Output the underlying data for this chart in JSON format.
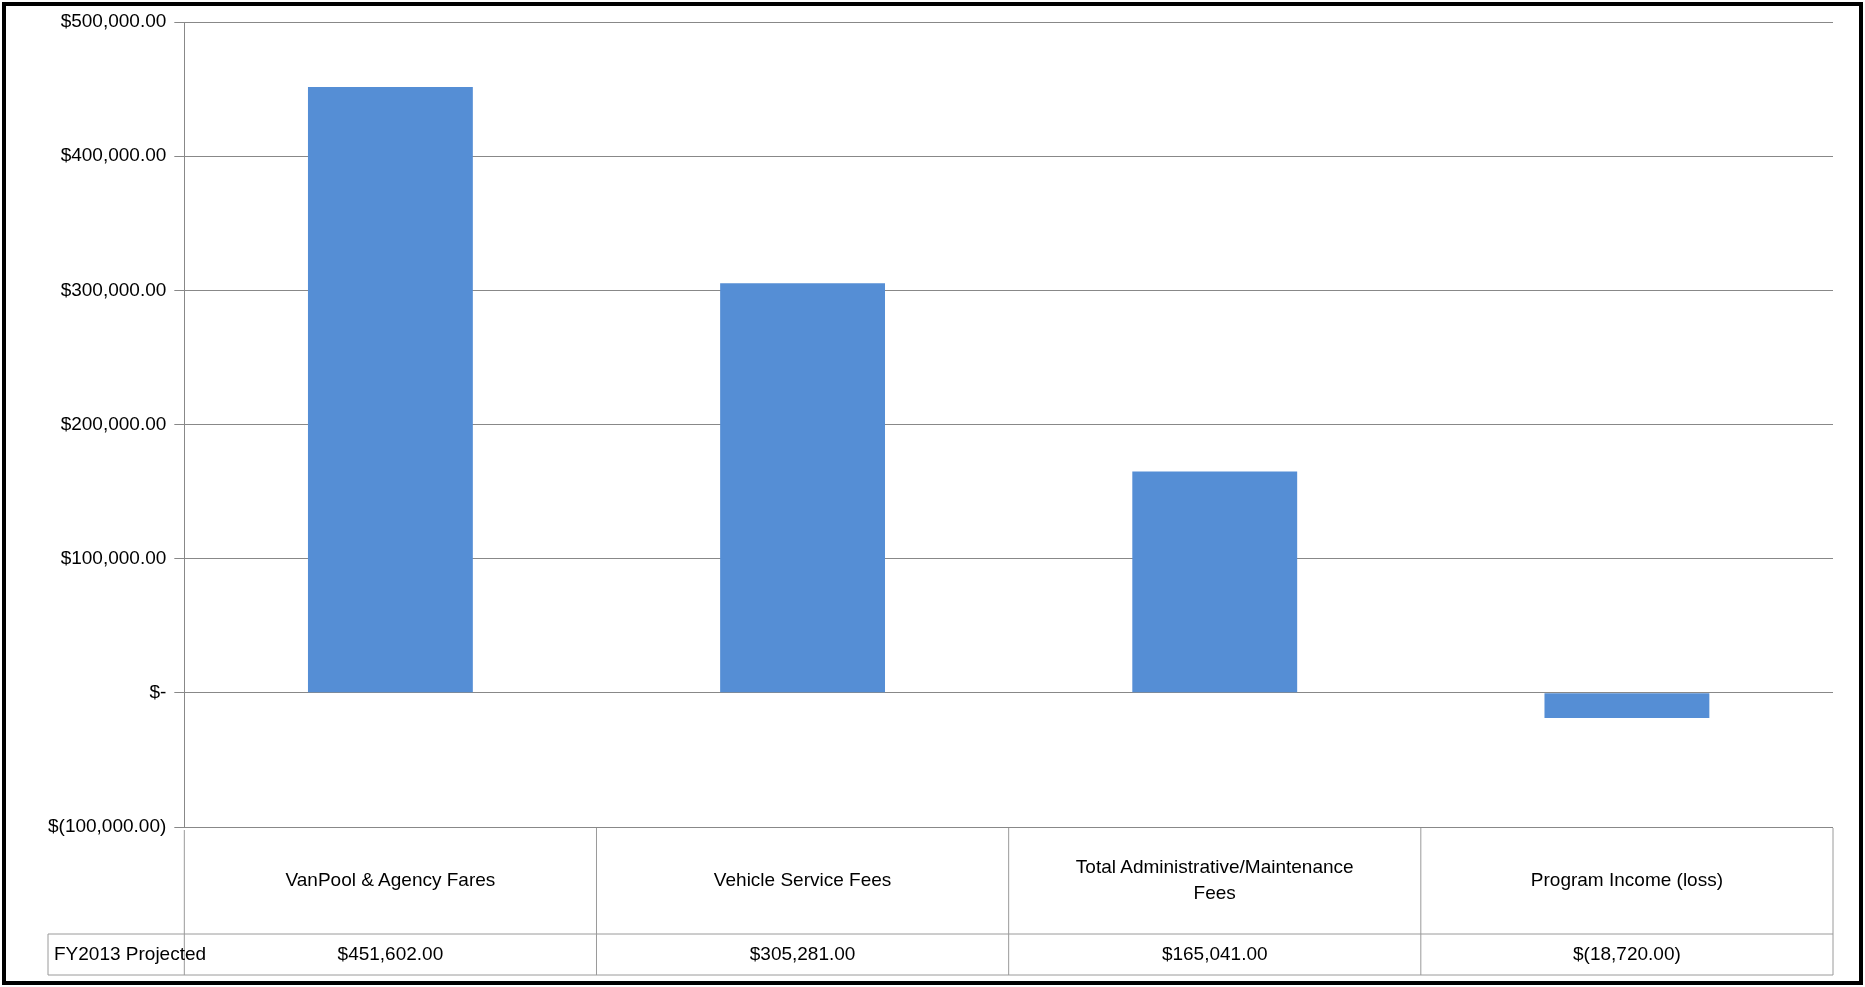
{
  "chart_data": {
    "type": "bar",
    "categories": [
      "VanPool & Agency Fares",
      "Vehicle Service Fees",
      "Total Administrative/Maintenance Fees",
      "Program Income (loss)"
    ],
    "series": [
      {
        "name": "FY2013 Projected",
        "color": "#558ed5",
        "values": [
          451602,
          305281,
          165041,
          -18720
        ],
        "value_labels": [
          "$451,602.00",
          "$305,281.00",
          "$165,041.00",
          "$(18,720.00)"
        ]
      }
    ],
    "ylim": [
      -100000,
      500000
    ],
    "yticks": [
      {
        "value": -100000,
        "label": "$(100,000.00)"
      },
      {
        "value": 0,
        "label": "$-"
      },
      {
        "value": 100000,
        "label": "$100,000.00"
      },
      {
        "value": 200000,
        "label": "$200,000.00"
      },
      {
        "value": 300000,
        "label": "$300,000.00"
      },
      {
        "value": 400000,
        "label": "$400,000.00"
      },
      {
        "value": 500000,
        "label": "$500,000.00"
      }
    ],
    "grid": "y",
    "legend": false
  }
}
